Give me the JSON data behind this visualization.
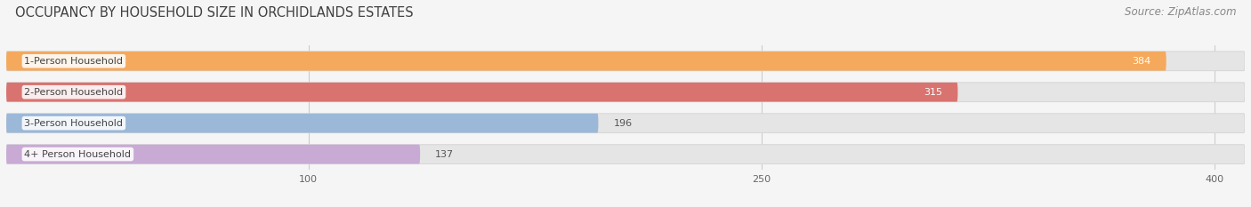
{
  "title": "OCCUPANCY BY HOUSEHOLD SIZE IN ORCHIDLANDS ESTATES",
  "source": "Source: ZipAtlas.com",
  "categories": [
    "1-Person Household",
    "2-Person Household",
    "3-Person Household",
    "4+ Person Household"
  ],
  "values": [
    384,
    315,
    196,
    137
  ],
  "bar_colors": [
    "#F5A95C",
    "#D9736F",
    "#9BB8D8",
    "#C8AAD5"
  ],
  "bar_edge_colors": [
    "#E89040",
    "#C96060",
    "#88A8CC",
    "#B898C8"
  ],
  "x_ticks": [
    100,
    250,
    400
  ],
  "x_max": 410,
  "background_color": "#f5f5f5",
  "bar_bg_color": "#e5e5e5",
  "bar_bg_edge_color": "#d8d8d8",
  "title_fontsize": 10.5,
  "source_fontsize": 8.5,
  "label_fontsize": 8,
  "value_fontsize": 8
}
